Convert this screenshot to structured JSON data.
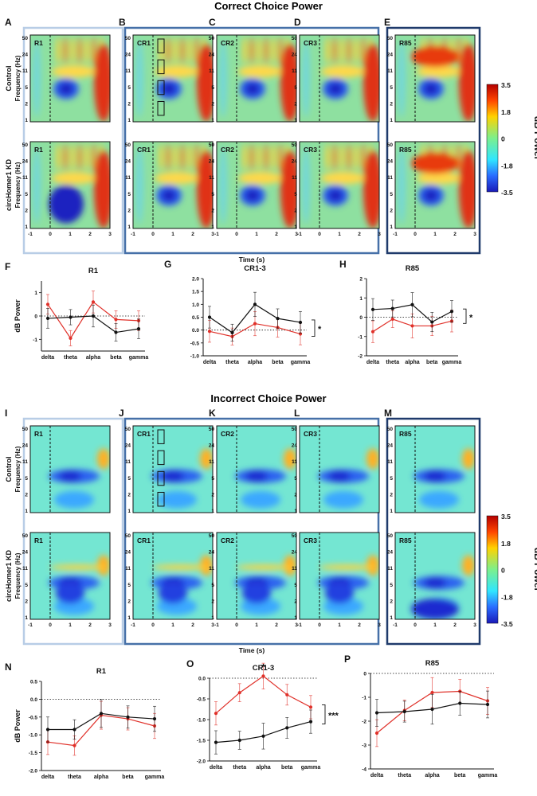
{
  "top_title": "Correct Choice Power",
  "bottom_title": "Incorrect Choice Power",
  "panel_letters_top": [
    "A",
    "B",
    "C",
    "D",
    "E"
  ],
  "panel_letters_bottom": [
    "I",
    "J",
    "K",
    "L",
    "M"
  ],
  "line_letters_top": [
    "F",
    "G",
    "H"
  ],
  "line_letters_bottom": [
    "N",
    "O",
    "P"
  ],
  "row_labels": [
    "Control",
    "circHomer1 KD"
  ],
  "freq_label": "Frequency (Hz)",
  "time_label": "Time (s)",
  "freq_ticks": [
    "50",
    "24",
    "11",
    "5",
    "2",
    "1"
  ],
  "time_ticks": [
    "-1",
    "0",
    "1",
    "2",
    "3"
  ],
  "spec_titles": [
    "R1",
    "CR1",
    "CR2",
    "CR3",
    "R85"
  ],
  "colorbar": {
    "ticks": [
      "3.5",
      "1.8",
      "0",
      "-1.8",
      "-3.5"
    ],
    "label": "dB Power"
  },
  "ylabel_line": "dB Power",
  "band_labels": [
    "delta",
    "theta",
    "alpha",
    "beta",
    "gamma"
  ],
  "colors": {
    "control": "#111111",
    "kd": "#e0312a",
    "box_light": "#b8cde6",
    "box_mid": "#4670a8",
    "box_dark": "#1f3a6b"
  },
  "chart_data": [
    {
      "type": "line",
      "title": "R1",
      "categories": [
        "delta",
        "theta",
        "alpha",
        "beta",
        "gamma"
      ],
      "ylabel": "dB Power",
      "ylim": [
        -1.5,
        1.5
      ],
      "yticks": [
        "1",
        "0",
        "-1"
      ],
      "significance": "",
      "series": [
        {
          "name": "Control",
          "values": [
            -0.1,
            -0.05,
            0.0,
            -0.7,
            -0.55
          ]
        },
        {
          "name": "circHomer1 KD",
          "values": [
            0.5,
            -0.95,
            0.6,
            -0.15,
            -0.2
          ]
        }
      ]
    },
    {
      "type": "line",
      "title": "CR1-3",
      "categories": [
        "delta",
        "theta",
        "alpha",
        "beta",
        "gamma"
      ],
      "ylabel": "",
      "ylim": [
        -1.0,
        2.0
      ],
      "yticks": [
        "2.0",
        "1.5",
        "1.0",
        "0.5",
        "0.0",
        "-0.5",
        "-1.0"
      ],
      "significance": "*",
      "series": [
        {
          "name": "Control",
          "values": [
            0.5,
            -0.1,
            1.0,
            0.45,
            0.3
          ]
        },
        {
          "name": "circHomer1 KD",
          "values": [
            -0.05,
            -0.25,
            0.25,
            0.1,
            -0.15
          ]
        }
      ]
    },
    {
      "type": "line",
      "title": "R85",
      "categories": [
        "delta",
        "theta",
        "alpha",
        "beta",
        "gamma"
      ],
      "ylabel": "",
      "ylim": [
        -2,
        2
      ],
      "yticks": [
        "2",
        "1",
        "0",
        "-1",
        "-2"
      ],
      "significance": "*",
      "series": [
        {
          "name": "Control",
          "values": [
            0.4,
            0.45,
            0.65,
            -0.25,
            0.3
          ]
        },
        {
          "name": "circHomer1 KD",
          "values": [
            -0.75,
            -0.1,
            -0.45,
            -0.45,
            -0.2
          ]
        }
      ]
    },
    {
      "type": "line",
      "title": "R1",
      "categories": [
        "delta",
        "theta",
        "alpha",
        "beta",
        "gamma"
      ],
      "ylabel": "dB Power",
      "ylim": [
        -2.0,
        0.5
      ],
      "yticks": [
        "0.5",
        "0.0",
        "-0.5",
        "-1.0",
        "-1.5",
        "-2.0"
      ],
      "significance": "",
      "series": [
        {
          "name": "Control",
          "values": [
            -0.85,
            -0.85,
            -0.4,
            -0.5,
            -0.55
          ]
        },
        {
          "name": "circHomer1 KD",
          "values": [
            -1.2,
            -1.3,
            -0.45,
            -0.55,
            -0.75
          ]
        }
      ]
    },
    {
      "type": "line",
      "title": "CR1-3",
      "categories": [
        "delta",
        "theta",
        "alpha",
        "beta",
        "gamma"
      ],
      "ylabel": "",
      "ylim": [
        -2.0,
        0.0
      ],
      "yticks": [
        "0.0",
        "-0.5",
        "-1.0",
        "-1.5",
        "-2.0"
      ],
      "significance": "***",
      "point_annotation": {
        "index": 2,
        "text": "*"
      },
      "series": [
        {
          "name": "Control",
          "values": [
            -1.55,
            -1.5,
            -1.4,
            -1.2,
            -1.05
          ]
        },
        {
          "name": "circHomer1 KD",
          "values": [
            -0.85,
            -0.35,
            0.05,
            -0.4,
            -0.7
          ]
        }
      ]
    },
    {
      "type": "line",
      "title": "R85",
      "categories": [
        "delta",
        "theta",
        "alpha",
        "beta",
        "gamma"
      ],
      "ylabel": "",
      "ylim": [
        -4,
        0
      ],
      "yticks": [
        "0",
        "-1",
        "-2",
        "-3",
        "-4"
      ],
      "significance": "",
      "series": [
        {
          "name": "Control",
          "values": [
            -1.65,
            -1.6,
            -1.5,
            -1.25,
            -1.3
          ]
        },
        {
          "name": "circHomer1 KD",
          "values": [
            -2.5,
            -1.55,
            -0.8,
            -0.75,
            -1.15
          ]
        }
      ]
    }
  ]
}
